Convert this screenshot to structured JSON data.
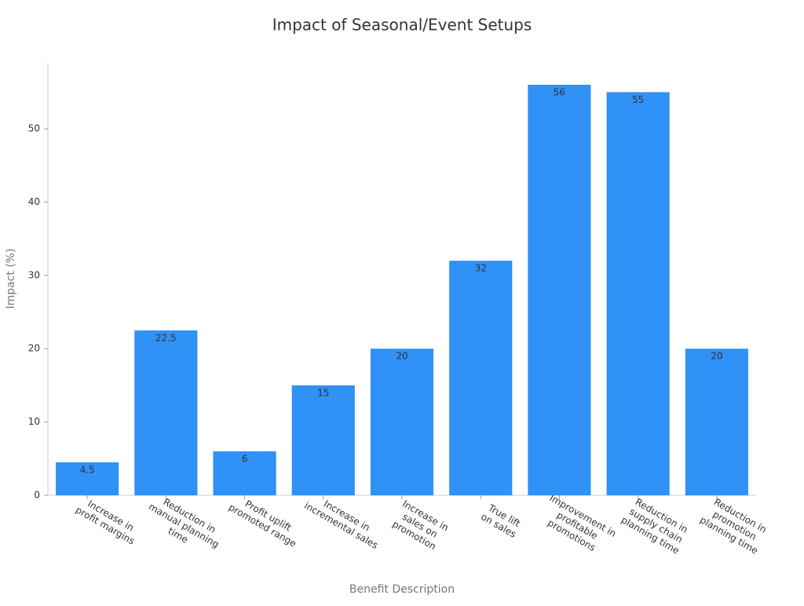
{
  "chart_data": {
    "type": "bar",
    "title": "Impact of Seasonal/Event Setups",
    "x_label": "Benefit Description",
    "y_label": "Impact (%)",
    "categories": [
      "Increase in\nprofit margins",
      "Reduction in\nmanual planning\ntime",
      "Profit uplift\npromoted range",
      "Increase in\nincremental sales",
      "Increase in\nsales on\npromotion",
      "True lift\non sales",
      "Improvement in\nprofitable\npromotions",
      "Reduction in\nsupply chain\nplanning time",
      "Reduction in\npromotion\nplanning time"
    ],
    "values": [
      4.5,
      22.5,
      6,
      15,
      20,
      32,
      56,
      55,
      20
    ],
    "color": "#3091f7",
    "ylim": [
      0,
      59
    ],
    "yticks": [
      0,
      10,
      20,
      30,
      40,
      50
    ],
    "grid": false
  }
}
